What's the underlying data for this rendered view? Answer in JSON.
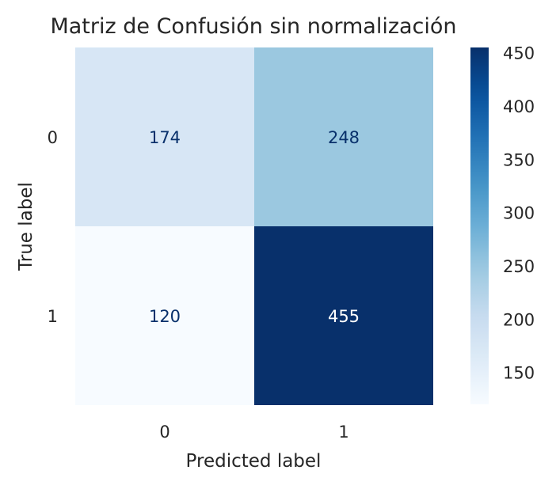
{
  "chart_data": {
    "type": "heatmap",
    "title": "Matriz de Confusión sin normalización",
    "xlabel": "Predicted label",
    "ylabel": "True label",
    "x_categories": [
      "0",
      "1"
    ],
    "y_categories": [
      "0",
      "1"
    ],
    "values": [
      [
        174,
        248
      ],
      [
        120,
        455
      ]
    ],
    "colormap": "Blues",
    "colorbar": {
      "min": 120,
      "max": 455,
      "ticks": [
        150,
        200,
        250,
        300,
        350,
        400,
        450
      ]
    },
    "grid": false
  }
}
